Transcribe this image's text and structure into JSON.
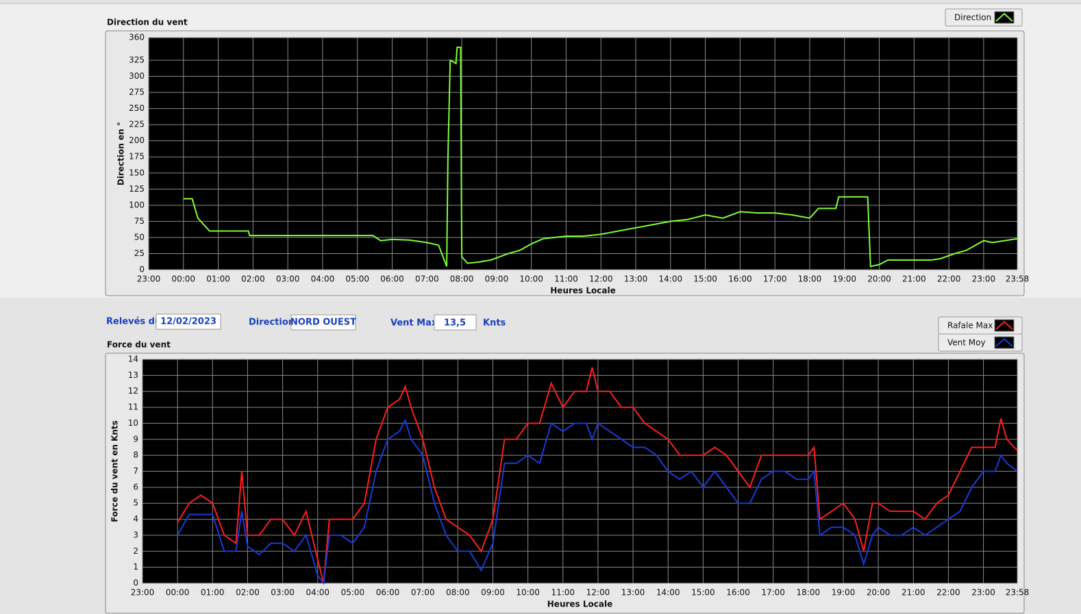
{
  "controls": {
    "date_label": "Relevés du",
    "date": "12/02/2023",
    "direction_label": "Direction",
    "direction": "NORD OUEST",
    "max_label": "Vent Max",
    "max": "13,5",
    "unit": "Knts"
  },
  "chart_data": [
    {
      "type": "line",
      "title": "Direction du vent",
      "xlabel": "Heures Locale",
      "ylabel": "Direction en °",
      "grid": true,
      "legend": "top-right",
      "x": [
        0,
        15,
        25,
        45,
        112,
        114,
        327,
        340,
        360,
        390,
        420,
        440,
        454,
        456,
        460,
        470,
        472,
        478,
        480,
        490,
        510,
        530,
        560,
        580,
        600,
        620,
        640,
        660,
        690,
        720,
        750,
        780,
        810,
        840,
        870,
        900,
        930,
        960,
        990,
        1020,
        1050,
        1080,
        1095,
        1125,
        1130,
        1180,
        1185,
        1200,
        1215,
        1290,
        1305,
        1330,
        1350,
        1370,
        1380,
        1395,
        1438
      ],
      "series": [
        {
          "name": "Direction",
          "color": "#7fff3a",
          "values": [
            110,
            110,
            80,
            60,
            60,
            53,
            53,
            45,
            47,
            46,
            42,
            38,
            5,
            170,
            325,
            320,
            345,
            345,
            20,
            10,
            12,
            15,
            25,
            30,
            40,
            48,
            50,
            52,
            52,
            55,
            60,
            65,
            70,
            75,
            78,
            85,
            80,
            90,
            88,
            88,
            85,
            80,
            95,
            95,
            113,
            113,
            5,
            8,
            15,
            15,
            17,
            25,
            30,
            40,
            45,
            42,
            48
          ]
        }
      ],
      "xlim": [
        -60,
        1438
      ],
      "xticks": [
        {
          "value": -60,
          "label": "23:00"
        },
        {
          "value": 0,
          "label": "00:00"
        },
        {
          "value": 60,
          "label": "01:00"
        },
        {
          "value": 120,
          "label": "02:00"
        },
        {
          "value": 180,
          "label": "03:00"
        },
        {
          "value": 240,
          "label": "04:00"
        },
        {
          "value": 300,
          "label": "05:00"
        },
        {
          "value": 360,
          "label": "06:00"
        },
        {
          "value": 420,
          "label": "07:00"
        },
        {
          "value": 480,
          "label": "08:00"
        },
        {
          "value": 540,
          "label": "09:00"
        },
        {
          "value": 600,
          "label": "10:00"
        },
        {
          "value": 660,
          "label": "11:00"
        },
        {
          "value": 720,
          "label": "12:00"
        },
        {
          "value": 780,
          "label": "13:00"
        },
        {
          "value": 840,
          "label": "14:00"
        },
        {
          "value": 900,
          "label": "15:00"
        },
        {
          "value": 960,
          "label": "16:00"
        },
        {
          "value": 1020,
          "label": "17:00"
        },
        {
          "value": 1080,
          "label": "18:00"
        },
        {
          "value": 1140,
          "label": "19:00"
        },
        {
          "value": 1200,
          "label": "20:00"
        },
        {
          "value": 1260,
          "label": "21:00"
        },
        {
          "value": 1320,
          "label": "22:00"
        },
        {
          "value": 1380,
          "label": "23:00"
        },
        {
          "value": 1438,
          "label": "23:58"
        }
      ],
      "ylim": [
        0,
        360
      ],
      "yticks": [
        0,
        25,
        50,
        75,
        100,
        125,
        150,
        175,
        200,
        225,
        250,
        275,
        300,
        325,
        360
      ]
    },
    {
      "type": "line",
      "title": "Force du vent",
      "xlabel": "Heures Locale",
      "ylabel": "Force du vent en Knts",
      "grid": true,
      "legend": "top-right",
      "x": [
        0,
        20,
        40,
        60,
        80,
        100,
        110,
        120,
        140,
        160,
        180,
        200,
        220,
        240,
        250,
        260,
        280,
        300,
        320,
        340,
        360,
        380,
        390,
        400,
        420,
        440,
        460,
        480,
        500,
        520,
        540,
        560,
        580,
        600,
        620,
        640,
        660,
        680,
        700,
        710,
        720,
        740,
        760,
        780,
        800,
        820,
        840,
        860,
        880,
        900,
        920,
        940,
        960,
        980,
        1000,
        1020,
        1040,
        1060,
        1080,
        1090,
        1100,
        1120,
        1140,
        1160,
        1175,
        1190,
        1200,
        1220,
        1240,
        1260,
        1280,
        1300,
        1320,
        1340,
        1360,
        1380,
        1400,
        1410,
        1420,
        1438
      ],
      "series": [
        {
          "name": "Rafale Max",
          "color": "#ff1e1e",
          "values": [
            3.8,
            5,
            5.5,
            5,
            3,
            2.5,
            7,
            3,
            3,
            4,
            4,
            3,
            4.5,
            1.5,
            0,
            4,
            4,
            4,
            5,
            9,
            11,
            11.5,
            12.3,
            11,
            9,
            6,
            4,
            3.5,
            3,
            2,
            4,
            9,
            9,
            10,
            10,
            12.5,
            11,
            12,
            12,
            13.5,
            12,
            12,
            11,
            11,
            10,
            9.5,
            9,
            8,
            8,
            8,
            8.5,
            8,
            7,
            6,
            8,
            8,
            8,
            8,
            8,
            8.5,
            4,
            4.5,
            5,
            4,
            2,
            5,
            5,
            4.5,
            4.5,
            4.5,
            4,
            5,
            5.5,
            7,
            8.5,
            8.5,
            8.5,
            10.3,
            9,
            8.3
          ]
        },
        {
          "name": "Vent Moy",
          "color": "#1a3ad8",
          "values": [
            3,
            4.3,
            4.3,
            4.3,
            2,
            2,
            4.5,
            2.3,
            1.8,
            2.5,
            2.5,
            2,
            3,
            0.5,
            0,
            3,
            3,
            2.5,
            3.5,
            7,
            9,
            9.5,
            10.2,
            9,
            8,
            5,
            3,
            2,
            2,
            0.8,
            2.5,
            7.5,
            7.5,
            8,
            7.5,
            10,
            9.5,
            10,
            10,
            9,
            10,
            9.5,
            9,
            8.5,
            8.5,
            8,
            7,
            6.5,
            7,
            6,
            7,
            6,
            5,
            5,
            6.5,
            7,
            7,
            6.5,
            6.5,
            7,
            3,
            3.5,
            3.5,
            3,
            1.2,
            3,
            3.5,
            3,
            3,
            3.5,
            3,
            3.5,
            4,
            4.5,
            6,
            7,
            7,
            8,
            7.5,
            7
          ]
        }
      ],
      "xlim": [
        -60,
        1438
      ],
      "xticks": [
        {
          "value": -60,
          "label": "23:00"
        },
        {
          "value": 0,
          "label": "00:00"
        },
        {
          "value": 60,
          "label": "01:00"
        },
        {
          "value": 120,
          "label": "02:00"
        },
        {
          "value": 180,
          "label": "03:00"
        },
        {
          "value": 240,
          "label": "04:00"
        },
        {
          "value": 300,
          "label": "05:00"
        },
        {
          "value": 360,
          "label": "06:00"
        },
        {
          "value": 420,
          "label": "07:00"
        },
        {
          "value": 480,
          "label": "08:00"
        },
        {
          "value": 540,
          "label": "09:00"
        },
        {
          "value": 600,
          "label": "10:00"
        },
        {
          "value": 660,
          "label": "11:00"
        },
        {
          "value": 720,
          "label": "12:00"
        },
        {
          "value": 780,
          "label": "13:00"
        },
        {
          "value": 840,
          "label": "14:00"
        },
        {
          "value": 900,
          "label": "15:00"
        },
        {
          "value": 960,
          "label": "16:00"
        },
        {
          "value": 1020,
          "label": "17:00"
        },
        {
          "value": 1080,
          "label": "18:00"
        },
        {
          "value": 1140,
          "label": "19:00"
        },
        {
          "value": 1200,
          "label": "20:00"
        },
        {
          "value": 1260,
          "label": "21:00"
        },
        {
          "value": 1320,
          "label": "22:00"
        },
        {
          "value": 1380,
          "label": "23:00"
        },
        {
          "value": 1438,
          "label": "23:58"
        }
      ],
      "ylim": [
        0,
        14
      ],
      "yticks": [
        0,
        1,
        2,
        3,
        4,
        5,
        6,
        7,
        8,
        9,
        10,
        11,
        12,
        13,
        14
      ]
    }
  ]
}
